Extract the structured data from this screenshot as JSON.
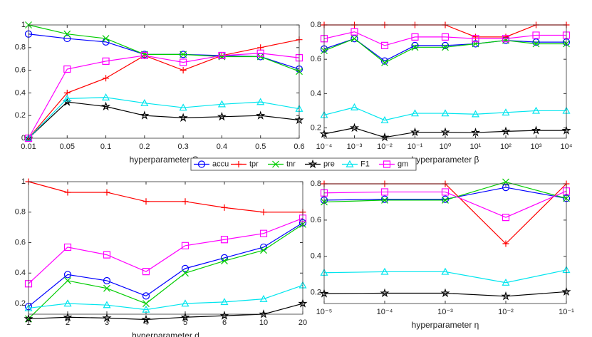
{
  "chart_data": [
    {
      "type": "line",
      "xlabel": "hyperparameter C",
      "categories": [
        "0.01",
        "0.05",
        "0.1",
        "0.2",
        "0.3",
        "0.4",
        "0.5",
        "0.6"
      ],
      "ylim": [
        0,
        1
      ],
      "yticks": [
        0,
        0.2,
        0.4,
        0.6,
        0.8,
        1
      ],
      "series": [
        {
          "name": "accu",
          "color": "#0000ff",
          "marker": "circle",
          "values": [
            0.92,
            0.88,
            0.85,
            0.74,
            0.74,
            0.73,
            0.72,
            0.61
          ]
        },
        {
          "name": "tpr",
          "color": "#ff0000",
          "marker": "plus",
          "values": [
            0,
            0.4,
            0.53,
            0.73,
            0.6,
            0.73,
            0.8,
            0.87
          ]
        },
        {
          "name": "tnr",
          "color": "#00cc00",
          "marker": "x",
          "values": [
            1.0,
            0.92,
            0.88,
            0.74,
            0.74,
            0.72,
            0.72,
            0.59
          ]
        },
        {
          "name": "pre",
          "color": "#000000",
          "marker": "star",
          "values": [
            0,
            0.32,
            0.28,
            0.2,
            0.18,
            0.19,
            0.2,
            0.16
          ]
        },
        {
          "name": "F1",
          "color": "#00e5ee",
          "marker": "triangle",
          "values": [
            0,
            0.35,
            0.36,
            0.31,
            0.27,
            0.3,
            0.32,
            0.26
          ]
        },
        {
          "name": "gm",
          "color": "#ff00ff",
          "marker": "square",
          "values": [
            0,
            0.61,
            0.68,
            0.73,
            0.67,
            0.73,
            0.75,
            0.71
          ]
        }
      ]
    },
    {
      "type": "line",
      "xlabel": "hyperparameter β",
      "categories": [
        "10⁻⁴",
        "10⁻³",
        "10⁻²",
        "10⁻¹",
        "10⁰",
        "10¹",
        "10²",
        "10³",
        "10⁴"
      ],
      "ylim": [
        0.14,
        0.8
      ],
      "yticks": [
        0.2,
        0.4,
        0.6,
        0.8
      ],
      "series": [
        {
          "values": [
            0.66,
            0.72,
            0.59,
            0.68,
            0.68,
            0.69,
            0.71,
            0.7,
            0.7
          ]
        },
        {
          "values": [
            0.8,
            0.8,
            0.8,
            0.8,
            0.8,
            0.73,
            0.73,
            0.8,
            0.8
          ]
        },
        {
          "values": [
            0.65,
            0.72,
            0.58,
            0.67,
            0.67,
            0.69,
            0.71,
            0.69,
            0.69
          ]
        },
        {
          "values": [
            0.165,
            0.2,
            0.145,
            0.175,
            0.175,
            0.173,
            0.18,
            0.185,
            0.185
          ]
        },
        {
          "values": [
            0.275,
            0.32,
            0.245,
            0.285,
            0.285,
            0.28,
            0.29,
            0.3,
            0.3
          ]
        },
        {
          "values": [
            0.72,
            0.76,
            0.68,
            0.73,
            0.73,
            0.72,
            0.72,
            0.74,
            0.74
          ]
        }
      ]
    },
    {
      "type": "line",
      "xlabel": "hyperparameter d",
      "categories": [
        "1",
        "2",
        "3",
        "4",
        "5",
        "6",
        "10",
        "20"
      ],
      "ylim": [
        0.13,
        1
      ],
      "yticks": [
        0.2,
        0.4,
        0.6,
        0.8,
        1
      ],
      "series": [
        {
          "values": [
            0.18,
            0.39,
            0.35,
            0.25,
            0.43,
            0.5,
            0.57,
            0.73
          ]
        },
        {
          "values": [
            1,
            0.93,
            0.93,
            0.87,
            0.87,
            0.83,
            0.8,
            0.8
          ]
        },
        {
          "values": [
            0.1,
            0.35,
            0.3,
            0.2,
            0.4,
            0.48,
            0.55,
            0.72
          ]
        },
        {
          "values": [
            0.1,
            0.11,
            0.105,
            0.095,
            0.11,
            0.12,
            0.13,
            0.2
          ]
        },
        {
          "values": [
            0.17,
            0.2,
            0.19,
            0.16,
            0.2,
            0.21,
            0.23,
            0.32
          ]
        },
        {
          "values": [
            0.33,
            0.57,
            0.52,
            0.41,
            0.58,
            0.62,
            0.66,
            0.76
          ]
        }
      ]
    },
    {
      "type": "line",
      "xlabel": "hyperparameter η",
      "categories": [
        "10⁻⁵",
        "10⁻⁴",
        "10⁻³",
        "10⁻²",
        "10⁻¹"
      ],
      "ylim": [
        0.14,
        0.8
      ],
      "yticks": [
        0.2,
        0.4,
        0.6,
        0.8
      ],
      "series": [
        {
          "values": [
            0.71,
            0.715,
            0.715,
            0.78,
            0.72
          ]
        },
        {
          "values": [
            0.8,
            0.8,
            0.8,
            0.47,
            0.8
          ]
        },
        {
          "values": [
            0.7,
            0.71,
            0.71,
            0.81,
            0.72
          ]
        },
        {
          "values": [
            0.195,
            0.197,
            0.197,
            0.18,
            0.205
          ]
        },
        {
          "values": [
            0.31,
            0.315,
            0.315,
            0.255,
            0.325
          ]
        },
        {
          "values": [
            0.75,
            0.755,
            0.755,
            0.615,
            0.76
          ]
        }
      ]
    }
  ]
}
